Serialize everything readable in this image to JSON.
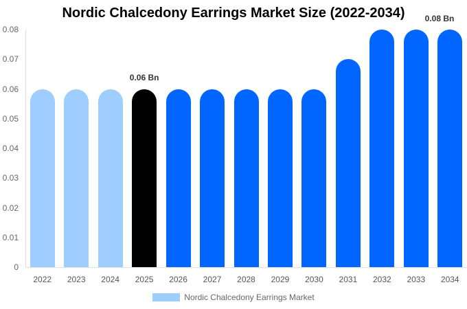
{
  "chart_data": {
    "type": "bar",
    "title": "Nordic Chalcedony Earrings Market Size (2022-2034)",
    "xlabel": "",
    "ylabel": "",
    "ylim": [
      0,
      0.08
    ],
    "yticks": [
      "0",
      "0.01",
      "0.02",
      "0.03",
      "0.04",
      "0.05",
      "0.06",
      "0.07",
      "0.08"
    ],
    "categories": [
      "2022",
      "2023",
      "2024",
      "2025",
      "2026",
      "2027",
      "2028",
      "2029",
      "2030",
      "2031",
      "2032",
      "2033",
      "2034"
    ],
    "series": [
      {
        "name": "Nordic Chalcedony Earrings Market",
        "values": [
          0.06,
          0.06,
          0.06,
          0.06,
          0.06,
          0.06,
          0.06,
          0.06,
          0.06,
          0.07,
          0.08,
          0.08,
          0.08
        ],
        "colors": [
          "#a0cdff",
          "#a0cdff",
          "#a0cdff",
          "#000000",
          "#0066ff",
          "#0066ff",
          "#0066ff",
          "#0066ff",
          "#0066ff",
          "#0066ff",
          "#0066ff",
          "#0066ff",
          "#0066ff"
        ]
      }
    ],
    "annotations": [
      {
        "category": "2025",
        "text": "0.06 Bn"
      },
      {
        "category": "2034",
        "text": "0.08 Bn"
      }
    ],
    "legend": {
      "position": "bottom",
      "label": "Nordic Chalcedony Earrings Market",
      "color": "#a0cdff"
    },
    "grid": false
  }
}
